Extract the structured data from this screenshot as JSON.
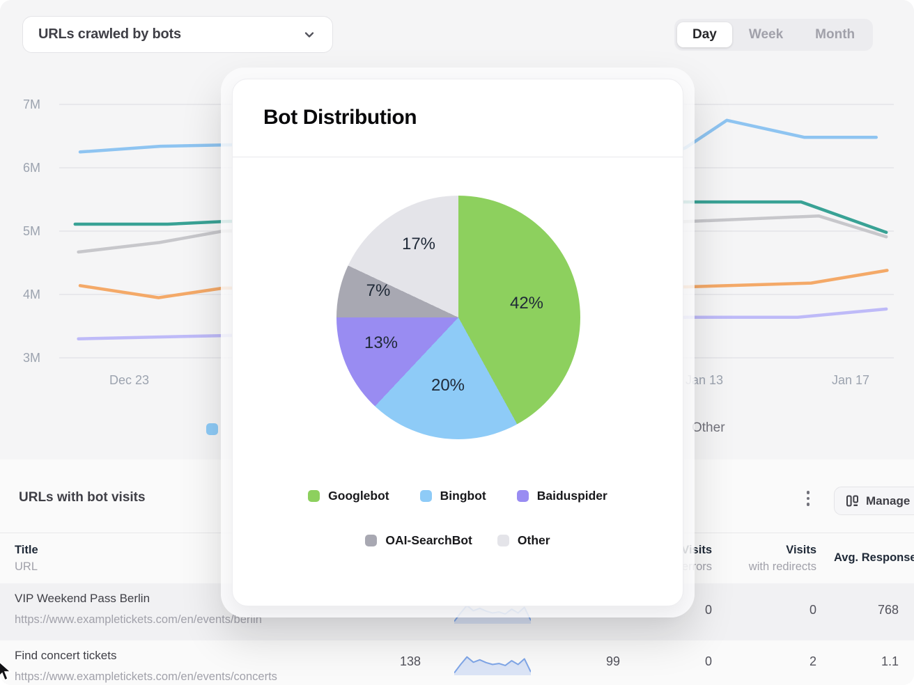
{
  "controls": {
    "metric_dropdown": {
      "label": "URLs crawled by bots",
      "icon": "chevron-down-icon"
    },
    "time_toggle": {
      "options": [
        "Day",
        "Week",
        "Month"
      ],
      "selected": "Day"
    }
  },
  "chart_data": [
    {
      "type": "line",
      "metric": "URLs crawled by bots",
      "x_tick_labels_visible": [
        "Dec 23",
        "Jan 13",
        "Jan 17"
      ],
      "y_tick_labels": [
        "7M",
        "6M",
        "5M",
        "4M",
        "3M"
      ],
      "ylim_M": [
        3,
        7
      ],
      "grid": true,
      "legend_visible": {
        "swatch_color": "#8ECBF7",
        "label": "Other"
      },
      "series": [
        {
          "name": "series-light-blue",
          "color": "#8EC4F1",
          "points": [
            [
              0.025,
              6.25
            ],
            [
              0.121,
              6.34
            ],
            [
              0.196,
              6.36
            ],
            [
              0.45,
              6.4
            ],
            [
              0.62,
              6.22
            ],
            [
              0.7,
              6.05
            ],
            [
              0.751,
              6.32
            ],
            [
              0.8,
              6.75
            ],
            [
              0.893,
              6.48
            ],
            [
              0.979,
              6.48
            ]
          ]
        },
        {
          "name": "series-teal",
          "color": "#39A295",
          "points": [
            [
              0.019,
              5.11
            ],
            [
              0.13,
              5.11
            ],
            [
              0.196,
              5.15
            ],
            [
              0.45,
              5.25
            ],
            [
              0.65,
              5.46
            ],
            [
              0.889,
              5.46
            ],
            [
              0.991,
              4.98
            ]
          ]
        },
        {
          "name": "series-gray",
          "color": "#C7C7CB",
          "points": [
            [
              0.023,
              4.67
            ],
            [
              0.12,
              4.82
            ],
            [
              0.196,
              5.0
            ],
            [
              0.5,
              5.08
            ],
            [
              0.751,
              5.15
            ],
            [
              0.91,
              5.24
            ],
            [
              0.991,
              4.91
            ]
          ]
        },
        {
          "name": "series-orange",
          "color": "#F4A968",
          "points": [
            [
              0.025,
              4.14
            ],
            [
              0.119,
              3.95
            ],
            [
              0.196,
              4.1
            ],
            [
              0.5,
              4.12
            ],
            [
              0.751,
              4.12
            ],
            [
              0.901,
              4.18
            ],
            [
              0.992,
              4.38
            ]
          ]
        },
        {
          "name": "series-lavender",
          "color": "#BEBAF8",
          "points": [
            [
              0.023,
              3.3
            ],
            [
              0.196,
              3.35
            ],
            [
              0.5,
              3.45
            ],
            [
              0.751,
              3.64
            ],
            [
              0.885,
              3.64
            ],
            [
              0.991,
              3.77
            ]
          ]
        }
      ]
    },
    {
      "type": "pie",
      "title": "Bot Distribution",
      "labels": [
        "Googlebot",
        "Bingbot",
        "Baiduspider",
        "OAI-SearchBot",
        "Other"
      ],
      "values": [
        42,
        20,
        13,
        7,
        17
      ],
      "unit": "%",
      "labels_display": [
        "42%",
        "20%",
        "13%",
        "7%",
        "17%"
      ],
      "colors": [
        "#8DD05E",
        "#8ECBF7",
        "#998CF2",
        "#A8A8B2",
        "#E4E4E9"
      ],
      "start_angle_deg": 0,
      "direction": "clockwise",
      "legend_position": "bottom"
    }
  ],
  "table": {
    "section_title": "URLs with bot visits",
    "kebab_menu": "more-options",
    "manage_button_label": "Manage",
    "columns": {
      "title": {
        "line1": "Title",
        "line2": "URL"
      },
      "visits_errors": {
        "line1": "Visits",
        "line2": "with errors"
      },
      "visits_redirects": {
        "line1": "Visits",
        "line2": "with redirects"
      },
      "avg_response": {
        "line1": "Avg. Response"
      }
    },
    "sparkline_shape": [
      0.05,
      0.5,
      0.9,
      0.62,
      0.75,
      0.6,
      0.5,
      0.55,
      0.45,
      0.7,
      0.5,
      0.8,
      0.1
    ],
    "sparkline_color": "#7FA6E8",
    "rows": [
      {
        "title": "VIP Weekend Pass Berlin",
        "url": "https://www.exampletickets.com/en/events/berlin",
        "metric1": "",
        "metric2": "",
        "visits_errors": "0",
        "visits_redirects": "0",
        "avg_response": "768"
      },
      {
        "title": "Find concert tickets",
        "url": "https://www.exampletickets.com/en/events/concerts",
        "metric1": "138",
        "metric2": "99",
        "visits_errors": "0",
        "visits_redirects": "2",
        "avg_response": "1.1"
      }
    ]
  }
}
